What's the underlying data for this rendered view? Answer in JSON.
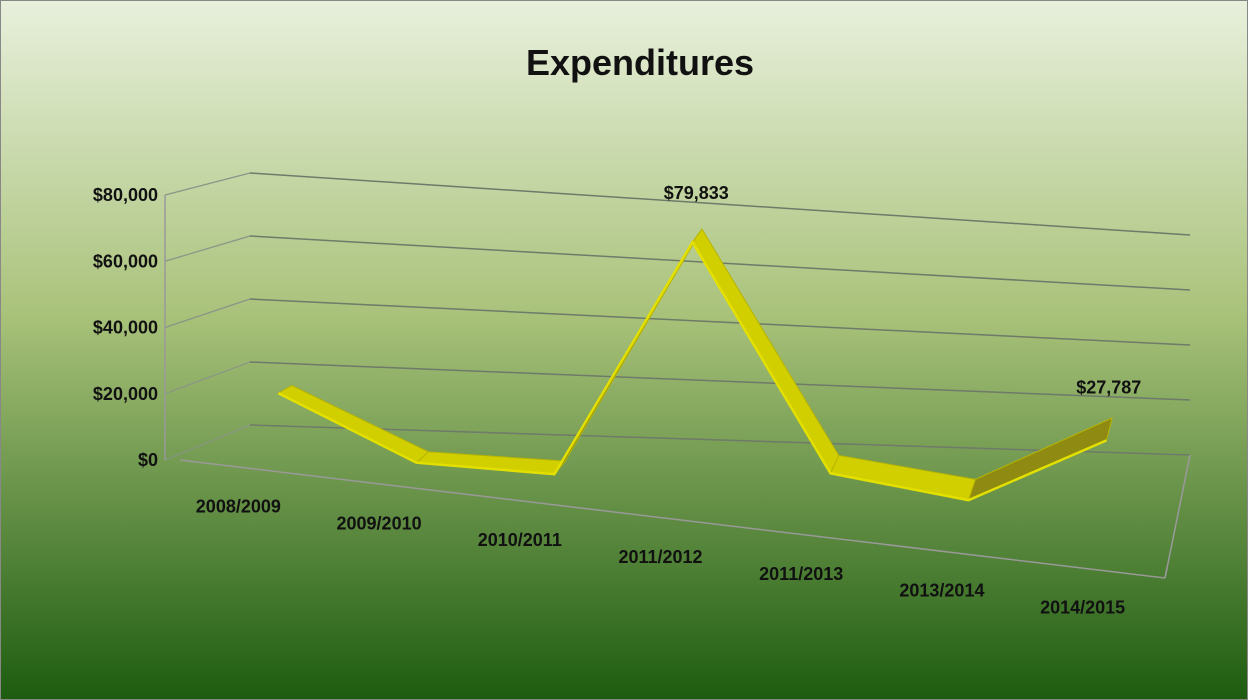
{
  "chart_data": {
    "type": "line3d",
    "title": "Expenditures",
    "categories": [
      "2008/2009",
      "2009/2010",
      "2010/2011",
      "2011/2012",
      "2011/2013",
      "2013/2014",
      "2014/2015"
    ],
    "series": [
      {
        "name": "Expenditures",
        "color": "#e3e000",
        "values": [
          18000,
          0,
          0,
          79833,
          8000,
          3000,
          27787
        ],
        "value_labels": [
          null,
          null,
          null,
          "$79,833",
          null,
          null,
          "$27,787"
        ]
      }
    ],
    "ylim": [
      0,
      80000
    ],
    "yticks": [
      {
        "value": 0,
        "label": "$0"
      },
      {
        "value": 20000,
        "label": "$20,000"
      },
      {
        "value": 40000,
        "label": "$40,000"
      },
      {
        "value": 60000,
        "label": "$60,000"
      },
      {
        "value": 80000,
        "label": "$80,000"
      }
    ],
    "grid": true
  }
}
